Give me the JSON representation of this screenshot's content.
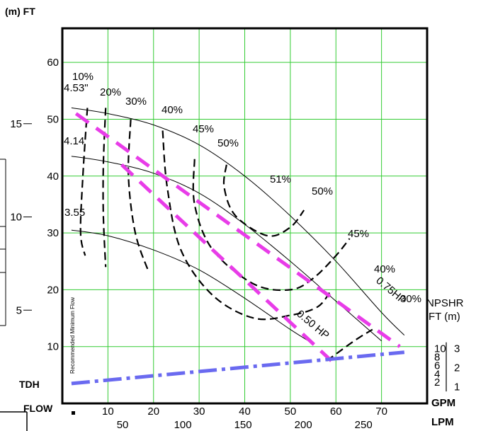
{
  "chart_data": {
    "type": "line",
    "axis_labels": {
      "top_units": "(m)  FT",
      "tdh": "TDH",
      "flow": "FLOW",
      "gpm": "GPM",
      "lpm": "LPM",
      "npshr": "NPSHR",
      "npshr_units": "FT   (m)",
      "min_flow": "Recommended Minimum Flow"
    },
    "x_gpm": {
      "range": [
        0,
        80
      ],
      "ticks": [
        "10",
        "20",
        "30",
        "40",
        "50",
        "60",
        "70"
      ]
    },
    "x_lpm": {
      "ticks": [
        "50",
        "100",
        "150",
        "200",
        "250"
      ]
    },
    "y_ft": {
      "range": [
        0,
        66
      ],
      "ticks": [
        "10",
        "20",
        "30",
        "40",
        "50",
        "60"
      ]
    },
    "y_m": {
      "ticks": [
        "5",
        "10",
        "15"
      ]
    },
    "npshr_ft_ticks": [
      "10",
      "8",
      "6",
      "4",
      "2"
    ],
    "npshr_m_ticks": [
      "3",
      "2",
      "1"
    ],
    "impellers": [
      {
        "name": "4.53\"",
        "points": [
          [
            2,
            52
          ],
          [
            10,
            51
          ],
          [
            20,
            49
          ],
          [
            30,
            45.5
          ],
          [
            40,
            40
          ],
          [
            50,
            33
          ],
          [
            60,
            25
          ],
          [
            70,
            16
          ],
          [
            75,
            12
          ]
        ]
      },
      {
        "name": "4.14",
        "points": [
          [
            2,
            43.5
          ],
          [
            10,
            42.5
          ],
          [
            20,
            40.5
          ],
          [
            30,
            37
          ],
          [
            40,
            31.5
          ],
          [
            50,
            25
          ],
          [
            60,
            18
          ],
          [
            70,
            11
          ]
        ]
      },
      {
        "name": "3.55",
        "points": [
          [
            2,
            30.5
          ],
          [
            10,
            29.5
          ],
          [
            20,
            27
          ],
          [
            30,
            23.5
          ],
          [
            40,
            18.5
          ],
          [
            50,
            13
          ],
          [
            55,
            10.5
          ]
        ]
      }
    ],
    "efficiency_labels": [
      "10%",
      "20%",
      "30%",
      "40%",
      "45%",
      "50%",
      "51%",
      "50%",
      "45%",
      "40%",
      "30%"
    ],
    "efficiency_curves": [
      {
        "label": "10%",
        "points": [
          [
            5.5,
            52
          ],
          [
            4.5,
            40
          ],
          [
            4,
            30
          ],
          [
            5,
            26
          ]
        ]
      },
      {
        "label": "20%",
        "points": [
          [
            9.5,
            52
          ],
          [
            9,
            42
          ],
          [
            9,
            33
          ],
          [
            9.5,
            24
          ]
        ]
      },
      {
        "label": "30%",
        "points": [
          [
            15,
            50
          ],
          [
            14.5,
            40
          ],
          [
            16,
            30
          ],
          [
            19,
            23
          ]
        ]
      },
      {
        "label": "40%",
        "points": [
          [
            22,
            48
          ],
          [
            23,
            38
          ],
          [
            26,
            27
          ],
          [
            33,
            19
          ],
          [
            42,
            15
          ],
          [
            50,
            15.5
          ],
          [
            56,
            17
          ],
          [
            59,
            20
          ]
        ]
      },
      {
        "label": "45%",
        "points": [
          [
            29,
            43
          ],
          [
            29,
            35
          ],
          [
            33,
            27
          ],
          [
            42,
            21
          ],
          [
            50,
            20
          ],
          [
            55,
            22
          ],
          [
            60,
            26
          ],
          [
            63,
            29
          ]
        ]
      },
      {
        "label": "50%",
        "points": [
          [
            36,
            42
          ],
          [
            35.5,
            38
          ],
          [
            38,
            33
          ],
          [
            45,
            29.5
          ],
          [
            50,
            31
          ],
          [
            53,
            34
          ]
        ]
      },
      {
        "label": "40%",
        "points": [
          [
            58,
            7.5
          ],
          [
            64,
            11
          ],
          [
            68,
            13
          ]
        ]
      }
    ],
    "power_lines": [
      {
        "label": "0.75HP",
        "points": [
          [
            3,
            51
          ],
          [
            74,
            10
          ]
        ]
      },
      {
        "label": "0.50 HP",
        "points": [
          [
            13,
            42
          ],
          [
            59,
            7.5
          ]
        ]
      }
    ],
    "npshr_line": {
      "points": [
        [
          2,
          3.5
        ],
        [
          75,
          9
        ]
      ]
    }
  }
}
